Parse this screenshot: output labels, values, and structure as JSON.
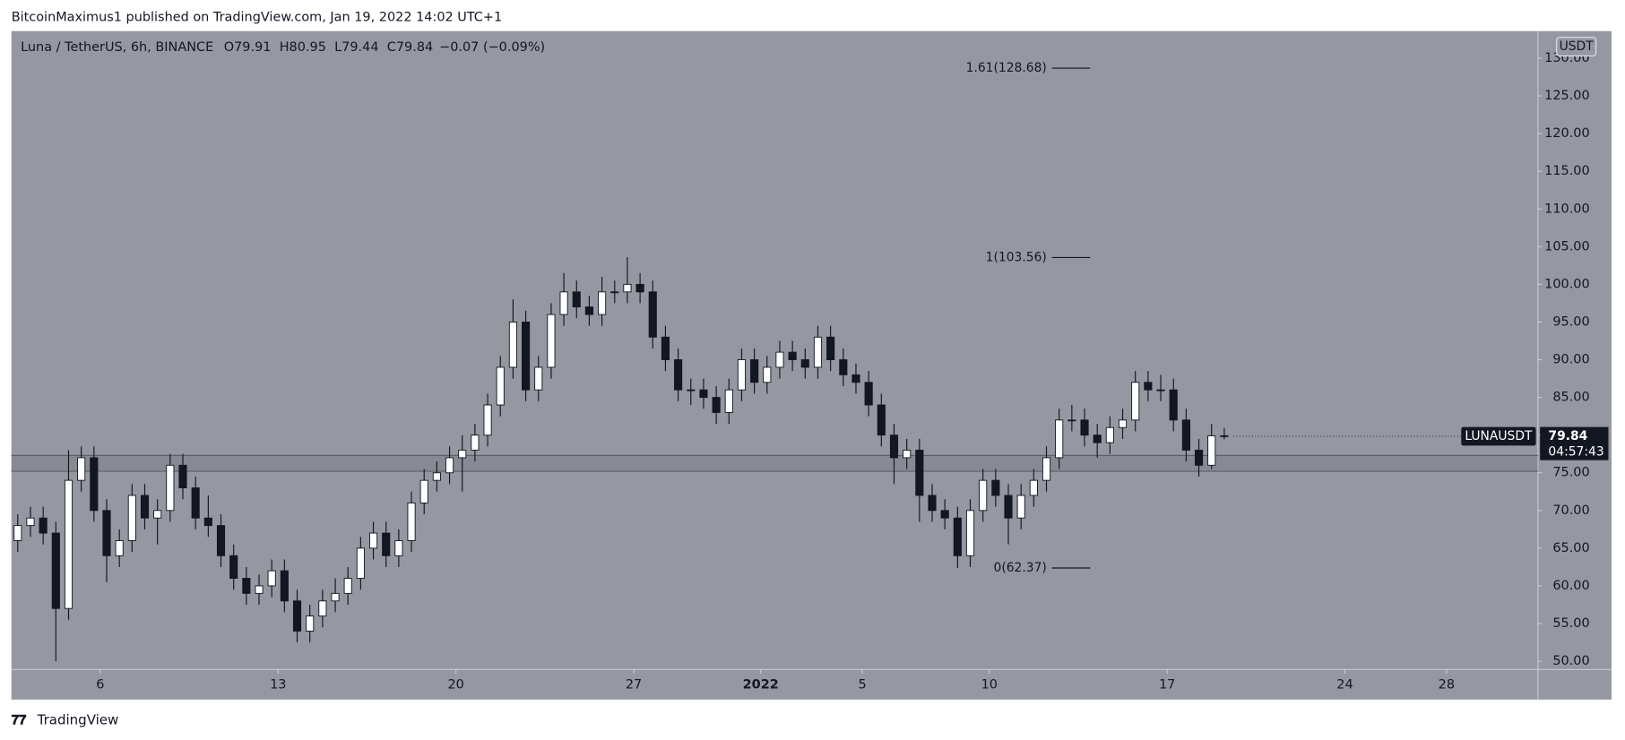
{
  "publisher": "BitcoinMaximus1 published on TradingView.com, Jan 19, 2022 14:02 UTC+1",
  "footer": "TradingView",
  "chart_data": {
    "type": "candlestick",
    "title": "Luna / TetherUS, 6h, BINANCE",
    "ohlc_letters": [
      "O",
      "H",
      "L",
      "C"
    ],
    "change": "−0.07 (−0.09%)",
    "currency": "USDT",
    "up_color": "#ffffff",
    "down_color": "#131722",
    "background": "#9598a1",
    "open": [
      66,
      68,
      69,
      67,
      57,
      74,
      77,
      70,
      64,
      66,
      72,
      69,
      70,
      76,
      73,
      69,
      68,
      64,
      61,
      59,
      60,
      62,
      58,
      54,
      56,
      58,
      59,
      61,
      65,
      67,
      64,
      66,
      71,
      74,
      75,
      77,
      78,
      80,
      84,
      89,
      95,
      86,
      89,
      96,
      99,
      97,
      96,
      99,
      99,
      100,
      99,
      93,
      90,
      86,
      86,
      85,
      83,
      86,
      90,
      87,
      89,
      91,
      90,
      89,
      93,
      90,
      88,
      87,
      84,
      80,
      77,
      78,
      72,
      70,
      69,
      64,
      70,
      74,
      72,
      69,
      72,
      74,
      77,
      82,
      82,
      80,
      79,
      81,
      82,
      87,
      86,
      86,
      82,
      78,
      76,
      79.91
    ],
    "high": [
      69.5,
      70.5,
      70.5,
      68.5,
      78,
      78.5,
      78.5,
      71.5,
      67.5,
      73.5,
      73.5,
      71.5,
      77.5,
      77.5,
      74.5,
      72,
      69.5,
      65.5,
      62.5,
      61.5,
      63.5,
      63.5,
      59.5,
      57.5,
      59.5,
      61,
      62.5,
      66.5,
      68.5,
      68.5,
      67.5,
      72.5,
      75.5,
      76.5,
      78.5,
      80,
      81.5,
      85.5,
      90.5,
      98,
      96.5,
      90.5,
      97.5,
      101.5,
      100.5,
      98.5,
      101,
      100.5,
      103.6,
      101.5,
      100.5,
      94.5,
      91.5,
      87.5,
      87.5,
      86.5,
      87.5,
      91.5,
      91.5,
      90.5,
      92.5,
      92.5,
      91.5,
      94.5,
      94.5,
      91.5,
      89.5,
      88.5,
      85.5,
      81.5,
      79.5,
      79.5,
      73.5,
      71.5,
      70.5,
      71.5,
      75.5,
      75.5,
      73.5,
      73.5,
      75.5,
      78.5,
      83.5,
      84,
      83.5,
      81.5,
      82.5,
      83.5,
      88.5,
      88.5,
      88,
      87.5,
      83.5,
      79.5,
      81.5,
      80.95
    ],
    "low": [
      64.5,
      66.5,
      65.5,
      50,
      55.5,
      72.5,
      68.5,
      60.5,
      62.5,
      64.5,
      67.5,
      65.5,
      68.5,
      71.5,
      67.5,
      66.5,
      62.5,
      59.5,
      57.5,
      57.5,
      58.5,
      56.5,
      52.5,
      52.5,
      54.5,
      56.5,
      57.5,
      59.5,
      63.5,
      62.5,
      62.5,
      64.5,
      69.5,
      72.5,
      73.5,
      72.5,
      76.5,
      78.5,
      82.5,
      87.5,
      84.5,
      84.5,
      87.5,
      94.5,
      95.5,
      94.5,
      94.5,
      97.5,
      97.5,
      97.5,
      91.5,
      88.5,
      84.5,
      84,
      83.5,
      81.5,
      81.5,
      84.5,
      85.5,
      85.5,
      87.5,
      88.5,
      87.5,
      87.5,
      88.5,
      86.5,
      85.5,
      82.5,
      78.5,
      73.5,
      75.5,
      68.5,
      68.5,
      67.5,
      62.37,
      62.5,
      68.5,
      70.5,
      65.5,
      67.5,
      70.5,
      72.5,
      75.5,
      80.5,
      78.5,
      77,
      77.5,
      79.5,
      80.5,
      84.5,
      84.5,
      80.5,
      76.5,
      74.5,
      75.5,
      79.44
    ],
    "close": [
      68,
      69,
      67,
      57,
      74,
      77,
      70,
      64,
      66,
      72,
      69,
      70,
      76,
      73,
      69,
      68,
      64,
      61,
      59,
      60,
      62,
      58,
      54,
      56,
      58,
      59,
      61,
      65,
      67,
      64,
      66,
      71,
      74,
      75,
      77,
      78,
      80,
      84,
      89,
      95,
      86,
      89,
      96,
      99,
      97,
      96,
      99,
      99,
      100,
      99,
      93,
      90,
      86,
      86,
      85,
      83,
      86,
      90,
      87,
      89,
      91,
      90,
      89,
      93,
      90,
      88,
      87,
      84,
      80,
      77,
      78,
      72,
      70,
      69,
      64,
      70,
      74,
      72,
      69,
      72,
      74,
      77,
      82,
      82,
      80,
      79,
      81,
      82,
      87,
      86,
      86,
      82,
      78,
      76,
      79.91,
      79.84
    ],
    "xlim": [
      -0.5,
      119.7
    ],
    "xticks": [
      {
        "value": 6.5,
        "label": "6"
      },
      {
        "value": 20.5,
        "label": "13"
      },
      {
        "value": 34.5,
        "label": "20"
      },
      {
        "value": 48.5,
        "label": "27"
      },
      {
        "value": 58.5,
        "label": "2022"
      },
      {
        "value": 66.5,
        "label": "5"
      },
      {
        "value": 76.5,
        "label": "10"
      },
      {
        "value": 90.5,
        "label": "17"
      },
      {
        "value": 104.5,
        "label": "24"
      },
      {
        "value": 112.5,
        "label": "28"
      }
    ],
    "ylim": [
      48.9,
      133.6
    ],
    "yticks": [
      {
        "value": 50,
        "label": "50.00"
      },
      {
        "value": 55,
        "label": "55.00"
      },
      {
        "value": 60,
        "label": "60.00"
      },
      {
        "value": 65,
        "label": "65.00"
      },
      {
        "value": 70,
        "label": "70.00"
      },
      {
        "value": 75,
        "label": "75.00"
      },
      {
        "value": 80,
        "label": "80.00"
      },
      {
        "value": 85,
        "label": "85.00"
      },
      {
        "value": 90,
        "label": "90.00"
      },
      {
        "value": 95,
        "label": "95.00"
      },
      {
        "value": 100,
        "label": "100.00"
      },
      {
        "value": 105,
        "label": "105.00"
      },
      {
        "value": 110,
        "label": "110.00"
      },
      {
        "value": 115,
        "label": "115.00"
      },
      {
        "value": 120,
        "label": "120.00"
      },
      {
        "value": 125,
        "label": "125.00"
      },
      {
        "value": 130,
        "label": "130.00"
      }
    ],
    "fib_levels": [
      {
        "label": "1.61(128.68)",
        "value": 128.68
      },
      {
        "label": "1(103.56)",
        "value": 103.56
      },
      {
        "label": "0(62.37)",
        "value": 62.37
      }
    ],
    "zone": {
      "low": 75.2,
      "high": 77.3
    },
    "price_tag": {
      "symbol": "LUNAUSDT",
      "price": 79.84,
      "countdown": "04:57:43"
    }
  }
}
